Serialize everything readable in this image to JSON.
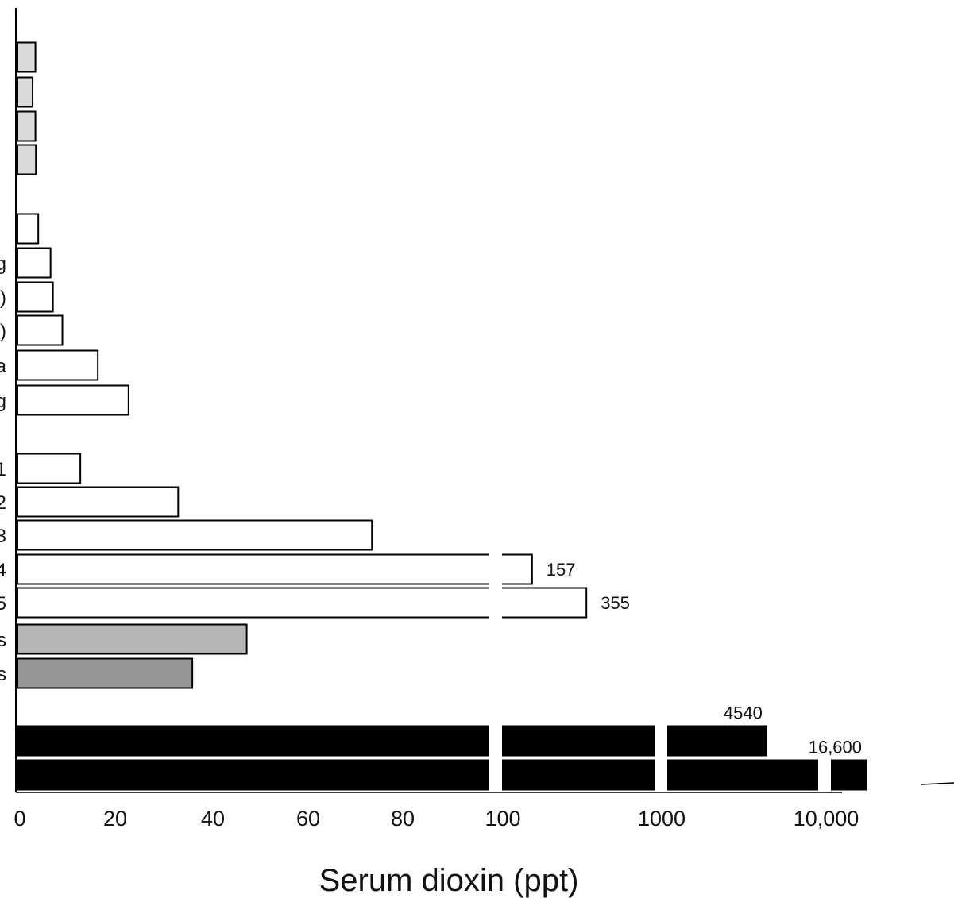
{
  "chart_data": {
    "type": "bar",
    "orientation": "horizontal",
    "title": "",
    "xlabel": "Serum dioxin (ppt)",
    "ylabel": "",
    "x_axis": {
      "scale": "broken: linear 0-100, then log 100-1000, 1000-10,000, 10,000+",
      "tick_labels": [
        "0",
        "20",
        "40",
        "60",
        "80",
        "100",
        "1000",
        "10,000"
      ]
    },
    "grid": false,
    "legend": "none",
    "categories": [
      "",
      "",
      "",
      "",
      "",
      "g",
      ")",
      ")",
      "a",
      "g",
      "1",
      "2",
      "3",
      "4",
      "5",
      "s",
      "s",
      "",
      ""
    ],
    "values": [
      3.8,
      3.2,
      3.8,
      3.9,
      4.4,
      7.0,
      7.5,
      9.5,
      17.0,
      23.5,
      13.3,
      34.0,
      75.0,
      157,
      355,
      48.5,
      37.0,
      4540,
      16600
    ],
    "data_labels": [
      "",
      "",
      "",
      "",
      "",
      "",
      "",
      "",
      "",
      "",
      "",
      "",
      "",
      "157",
      "355",
      "",
      "",
      "4540",
      "16,600"
    ],
    "colors": {
      "group1": "#d9d9d9",
      "group2": "#ffffff",
      "group3": "#ffffff",
      "group4": "#b5b5b5",
      "group5": "#969696",
      "group6": "#000000"
    }
  }
}
